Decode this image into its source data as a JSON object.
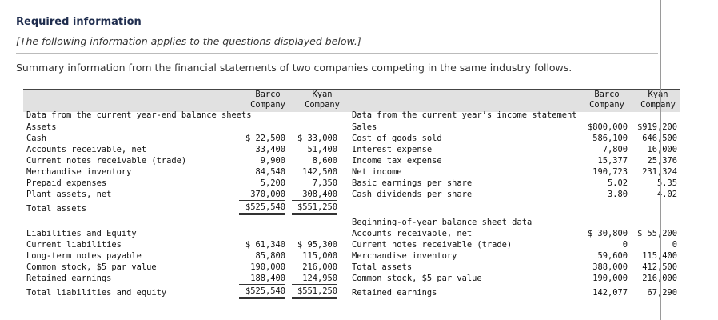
{
  "header": {
    "title": "Required information",
    "note": "[The following information applies to the questions displayed below.]",
    "summary": "Summary information from the financial statements of two companies competing in the same industry follows."
  },
  "columns": {
    "barco": "Barco",
    "kyan": "Kyan",
    "company": "Company"
  },
  "balance_sheet": {
    "heading": "Data from the current year-end balance sheets",
    "assets_heading": "Assets",
    "assets": [
      {
        "label": "Cash",
        "barco": "$ 22,500",
        "kyan": "$ 33,000"
      },
      {
        "label": "Accounts receivable, net",
        "barco": "33,400",
        "kyan": "51,400"
      },
      {
        "label": "Current notes receivable (trade)",
        "barco": "9,900",
        "kyan": "8,600"
      },
      {
        "label": "Merchandise inventory",
        "barco": "84,540",
        "kyan": "142,500"
      },
      {
        "label": "Prepaid expenses",
        "barco": "5,200",
        "kyan": "7,350"
      },
      {
        "label": "Plant assets, net",
        "barco": "370,000",
        "kyan": "308,400"
      }
    ],
    "total_assets": {
      "label": "Total assets",
      "barco": "$525,540",
      "kyan": "$551,250"
    },
    "liab_heading": "Liabilities and Equity",
    "liabilities": [
      {
        "label": "Current liabilities",
        "barco": "$ 61,340",
        "kyan": "$ 95,300"
      },
      {
        "label": "Long-term notes payable",
        "barco": "85,800",
        "kyan": "115,000"
      },
      {
        "label": "Common stock, $5 par value",
        "barco": "190,000",
        "kyan": "216,000"
      },
      {
        "label": "Retained earnings",
        "barco": "188,400",
        "kyan": "124,950"
      }
    ],
    "total_liab": {
      "label": "Total liabilities and equity",
      "barco": "$525,540",
      "kyan": "$551,250"
    }
  },
  "income_statement": {
    "heading": "Data from the current year’s income statement",
    "rows": [
      {
        "label": "Sales",
        "barco": "$800,000",
        "kyan": "$919,200"
      },
      {
        "label": "Cost of goods sold",
        "barco": "586,100",
        "kyan": "646,500"
      },
      {
        "label": "Interest expense",
        "barco": "7,800",
        "kyan": "16,000"
      },
      {
        "label": "Income tax expense",
        "barco": "15,377",
        "kyan": "25,376"
      },
      {
        "label": "Net income",
        "barco": "190,723",
        "kyan": "231,324"
      },
      {
        "label": "Basic earnings per share",
        "barco": "5.02",
        "kyan": "5.35"
      },
      {
        "label": "Cash dividends per share",
        "barco": "3.80",
        "kyan": "4.02"
      }
    ]
  },
  "beginning_balance": {
    "heading": "Beginning-of-year balance sheet data",
    "rows": [
      {
        "label": "Accounts receivable, net",
        "barco": "$ 30,800",
        "kyan": "$ 55,200"
      },
      {
        "label": "Current notes receivable (trade)",
        "barco": "0",
        "kyan": "0"
      },
      {
        "label": "Merchandise inventory",
        "barco": "59,600",
        "kyan": "115,400"
      },
      {
        "label": "Total assets",
        "barco": "388,000",
        "kyan": "412,500"
      },
      {
        "label": "Common stock, $5 par value",
        "barco": "190,000",
        "kyan": "216,000"
      },
      {
        "label": "Retained earnings",
        "barco": "142,077",
        "kyan": "67,290"
      }
    ]
  }
}
